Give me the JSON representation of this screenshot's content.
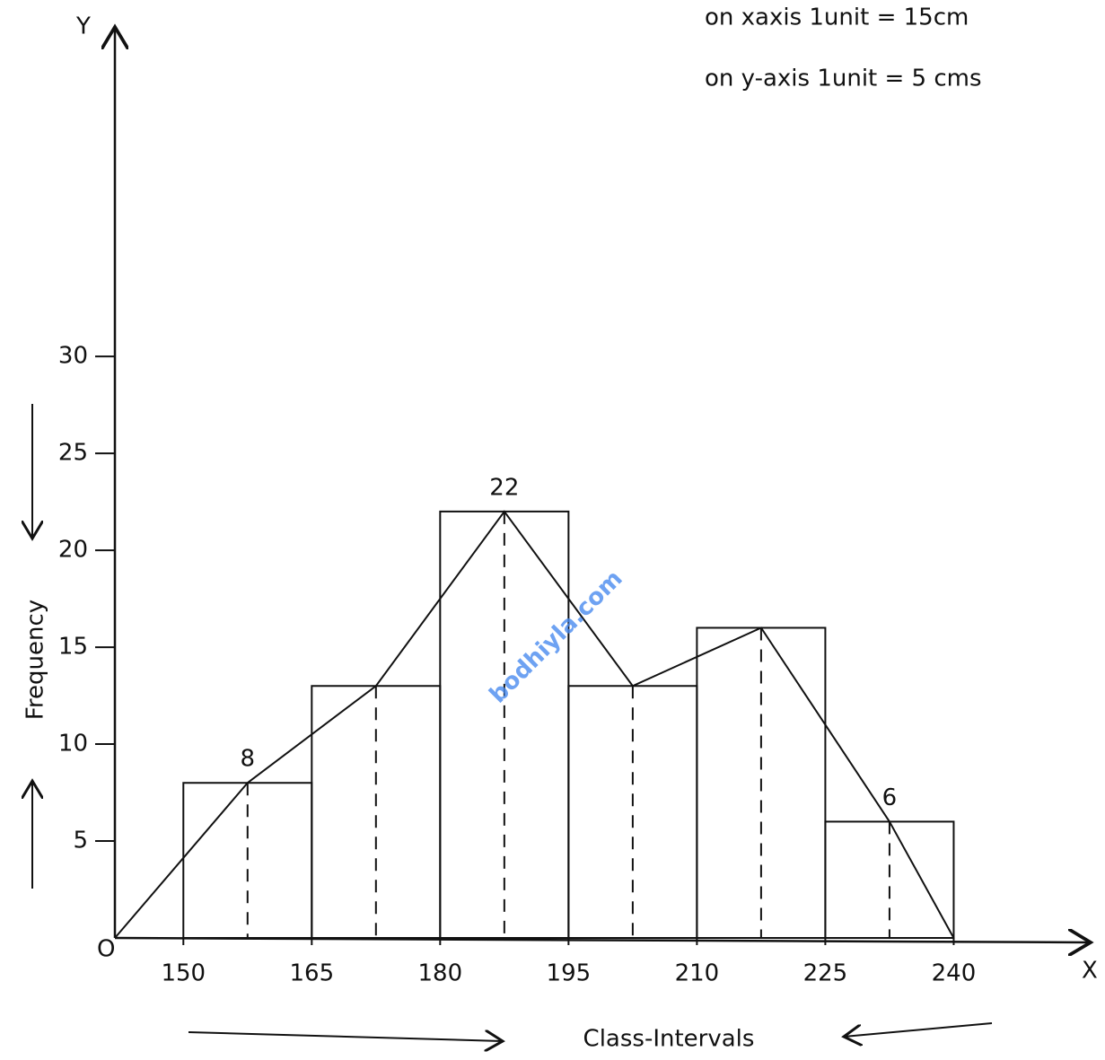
{
  "chart_data": {
    "type": "histogram",
    "notes": [
      "on xaxis 1unit = 15cm",
      "on y-axis 1unit = 5 cms"
    ],
    "x_label": "Class-Intervals",
    "y_label": "Frequency",
    "x_axis_letter": "X",
    "y_axis_letter": "Y",
    "origin_label": "O",
    "bins": [
      150,
      165,
      180,
      195,
      210,
      225,
      240
    ],
    "counts": [
      8,
      13,
      22,
      13,
      16,
      6
    ],
    "value_labels": [
      "8",
      null,
      "22",
      null,
      null,
      "6"
    ],
    "color": "#111111",
    "xlim": [
      142,
      256
    ],
    "ylim": [
      0,
      47
    ],
    "xticks": [
      150,
      165,
      180,
      195,
      210,
      225,
      240
    ],
    "yticks": [
      5,
      10,
      15,
      20,
      25,
      30
    ],
    "frequency_polygon": true,
    "watermark": "bodhiyla.com"
  }
}
